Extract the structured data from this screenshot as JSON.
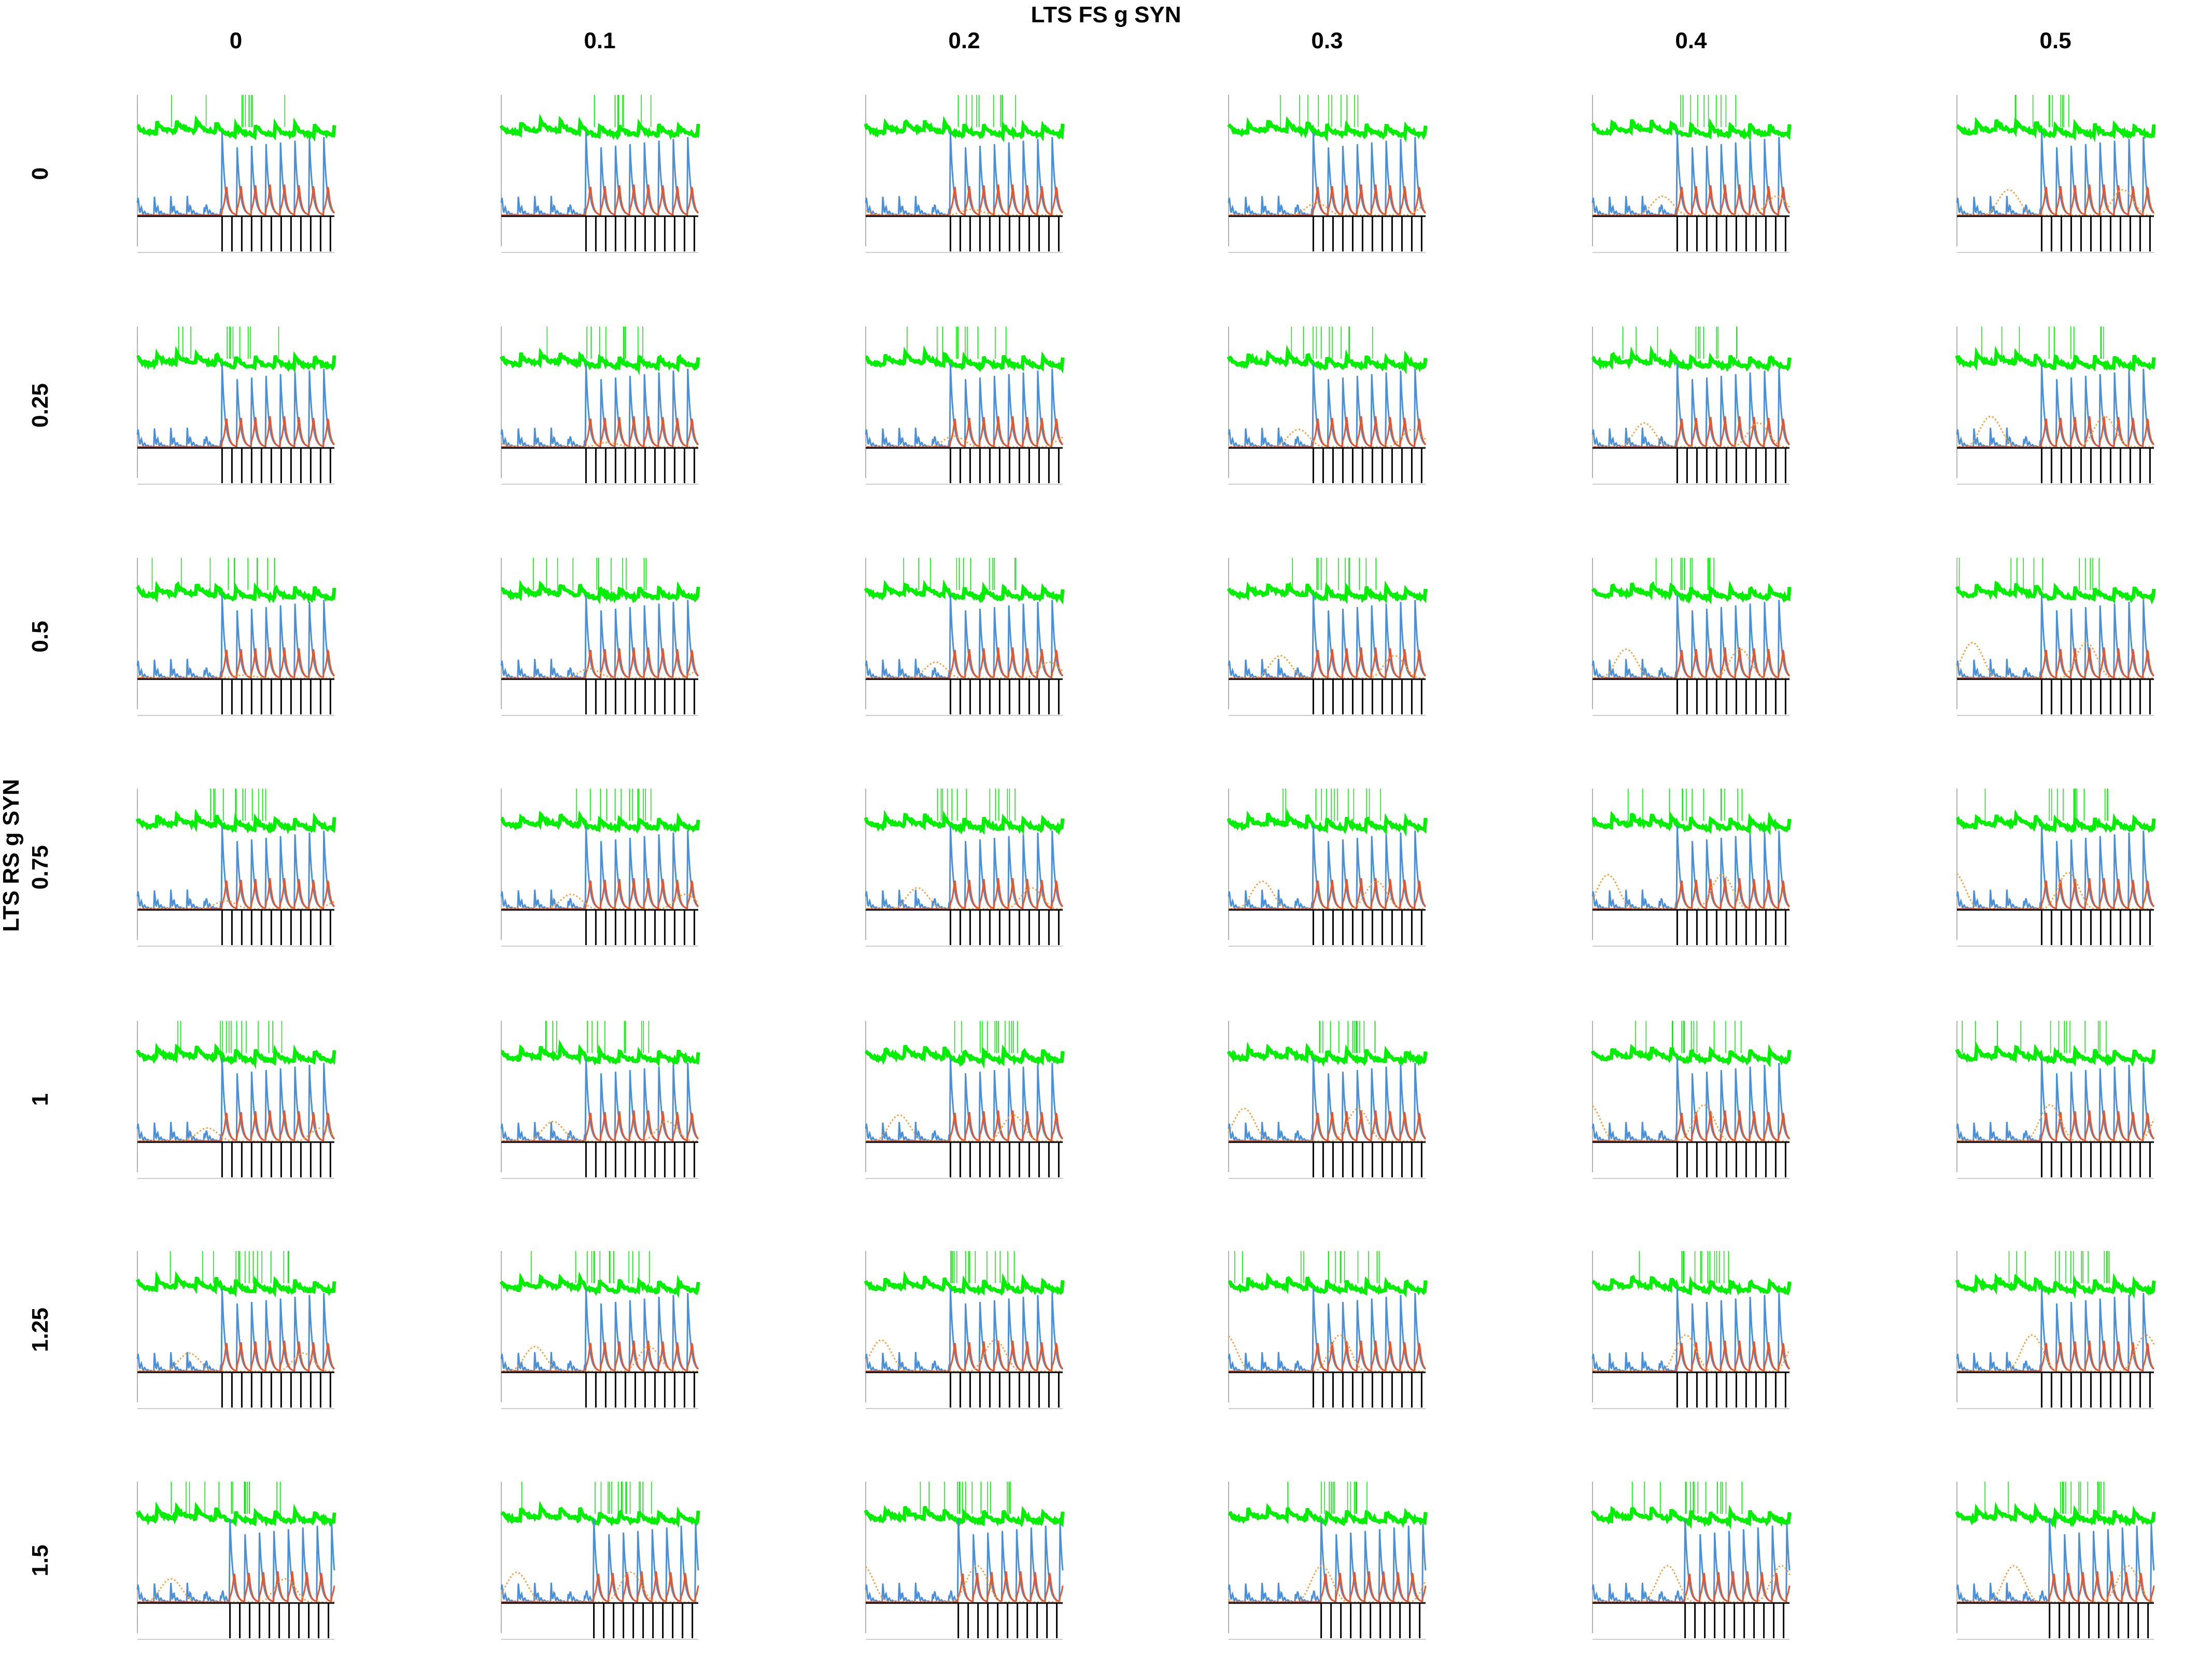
{
  "chart_data": {
    "type": "line",
    "layout": "small-multiples",
    "title": "LTS FS g SYN",
    "row_title": "LTS RS g SYN",
    "column_values": [
      "0",
      "0.1",
      "0.2",
      "0.3",
      "0.4",
      "0.5"
    ],
    "row_values": [
      "0",
      "0.25",
      "0.5",
      "0.75",
      "1",
      "1.25",
      "1.5"
    ],
    "panel_traces": [
      {
        "color": "#00ee00",
        "description": "voltage traces (top)"
      },
      {
        "color": "#4a90d9",
        "description": "solid trace"
      },
      {
        "color": "#e8552a",
        "description": "solid trace"
      },
      {
        "color": "#f5a040",
        "description": "dotted trace"
      },
      {
        "color": "#000000",
        "description": "stimulus pulses (bottom)"
      }
    ],
    "grid": false
  }
}
